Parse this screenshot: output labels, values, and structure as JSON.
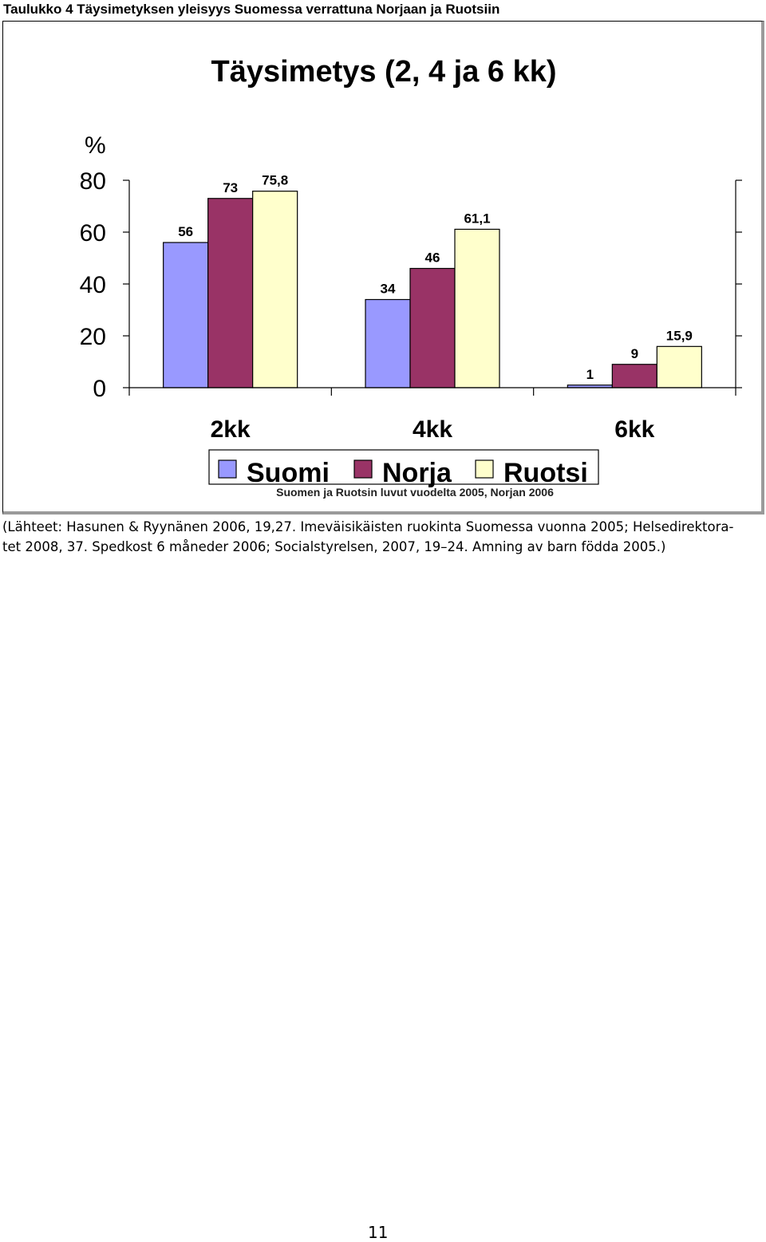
{
  "caption": "Taulukko 4 Täysimetyksen yleisyys Suomessa verrattuna Norjaan ja Ruotsiin",
  "chart_data": {
    "type": "bar",
    "title": "Täysimetys (2, 4 ja 6 kk)",
    "ylabel": "%",
    "xlabel": "",
    "categories": [
      "2kk",
      "4kk",
      "6kk"
    ],
    "series": [
      {
        "name": "Suomi",
        "values": [
          56,
          34,
          1
        ],
        "labels": [
          "56",
          "34",
          "1"
        ],
        "color": "#9999FF"
      },
      {
        "name": "Norja",
        "values": [
          73,
          46,
          9
        ],
        "labels": [
          "73",
          "46",
          "9"
        ],
        "color": "#993366"
      },
      {
        "name": "Ruotsi",
        "values": [
          75.8,
          61.1,
          15.9
        ],
        "labels": [
          "75,8",
          "61,1",
          "15,9"
        ],
        "color": "#FFFFCC"
      }
    ],
    "ylim": [
      0,
      80
    ],
    "yticks": [
      0,
      20,
      40,
      60,
      80
    ],
    "grid": false,
    "legend": "bottom",
    "note": "Suomen ja Ruotsin luvut vuodelta 2005, Norjan 2006"
  },
  "source": {
    "line1": "(Lähteet: Hasunen & Ryynänen 2006, 19,27. Imeväisikäisten ruokinta Suomessa vuonna 2005; Helsedirektora-",
    "line2": "tet 2008, 37. Spedkost 6 måneder 2006; Socialstyrelsen, 2007, 19–24. Amning av barn födda 2005.)"
  },
  "page_number": "11"
}
